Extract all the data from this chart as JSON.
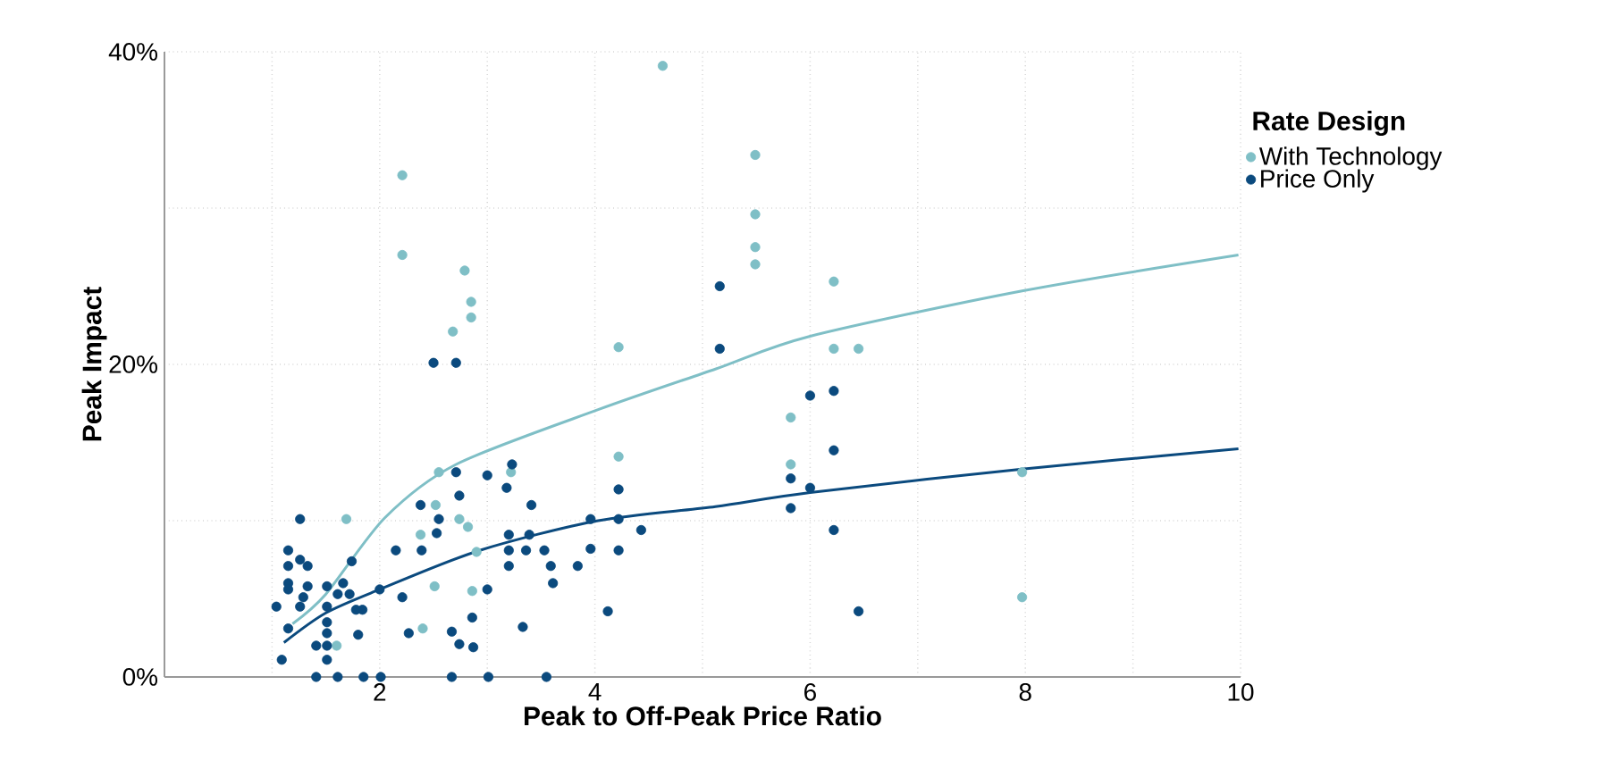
{
  "chart_data": {
    "type": "scatter",
    "xlabel": "Peak to Off-Peak Price Ratio",
    "ylabel": "Peak Impact",
    "legend_title": "Rate Design",
    "xlim": [
      0,
      10
    ],
    "ylim": [
      0,
      40
    ],
    "xticks": [
      {
        "value": 1,
        "label": null
      },
      2,
      {
        "value": 3,
        "label": null
      },
      4,
      {
        "value": 5,
        "label": null
      },
      6,
      {
        "value": 7,
        "label": null
      },
      8,
      {
        "value": 9,
        "label": null
      },
      10
    ],
    "yticks": [
      {
        "value": 0,
        "label": "0%"
      },
      {
        "value": 10,
        "label": null
      },
      {
        "value": 20,
        "label": "20%"
      },
      {
        "value": 30,
        "label": null
      },
      {
        "value": 40,
        "label": "40%"
      }
    ],
    "grid": true,
    "legend": "right",
    "series": [
      {
        "name": "With Technology",
        "marker": "circle",
        "color": "#7fbfc6",
        "x": [
          2.21,
          2.21,
          2.79,
          2.85,
          2.85,
          2.68,
          4.63,
          4.22,
          4.22,
          2.55,
          3.22,
          1.69,
          2.52,
          2.38,
          2.74,
          2.82,
          2.9,
          2.51,
          2.86,
          2.4,
          1.6,
          5.49,
          5.49,
          5.49,
          5.49,
          6.22,
          6.22,
          6.45,
          5.82,
          5.82,
          7.97,
          7.97
        ],
        "values": [
          32.1,
          27.0,
          26.0,
          24.0,
          23.0,
          22.1,
          39.1,
          21.1,
          14.1,
          13.1,
          13.1,
          10.1,
          11.0,
          9.1,
          10.1,
          9.6,
          8.0,
          5.8,
          5.5,
          3.1,
          2.0,
          33.4,
          29.6,
          27.5,
          26.4,
          25.3,
          21.0,
          21.0,
          16.6,
          13.6,
          13.1,
          5.1
        ]
      },
      {
        "name": "Price Only",
        "marker": "circle",
        "color": "#0b4a7e",
        "x": [
          5.16,
          5.16,
          6.0,
          6.22,
          6.22,
          5.82,
          6.0,
          5.82,
          6.22,
          6.45,
          2.5,
          2.71,
          2.71,
          3.0,
          3.23,
          3.18,
          2.74,
          2.38,
          2.55,
          2.53,
          3.41,
          2.15,
          2.39,
          3.2,
          3.39,
          3.2,
          3.36,
          3.2,
          3.53,
          3.59,
          3.61,
          3.84,
          3.96,
          3.96,
          4.22,
          4.22,
          4.22,
          4.43,
          4.12,
          3.0,
          2.86,
          3.33,
          2.67,
          2.74,
          2.87,
          2.21,
          2.27,
          2.0,
          2.67,
          3.01,
          3.55,
          2.01,
          1.85,
          1.61,
          1.41,
          1.09,
          1.26,
          1.15,
          1.15,
          1.26,
          1.33,
          1.15,
          1.15,
          1.26,
          1.04,
          1.33,
          1.29,
          1.15,
          1.51,
          1.51,
          1.51,
          1.51,
          1.51,
          1.51,
          1.41,
          1.66,
          1.74,
          1.72,
          1.78,
          1.84,
          1.8,
          1.61
        ],
        "values": [
          25.0,
          21.0,
          18.0,
          18.3,
          14.5,
          12.7,
          12.1,
          10.8,
          9.4,
          4.2,
          20.1,
          20.1,
          13.1,
          12.9,
          13.6,
          12.1,
          11.6,
          11.0,
          10.1,
          9.2,
          11.0,
          8.1,
          8.1,
          9.1,
          9.1,
          8.1,
          8.1,
          7.1,
          8.1,
          7.1,
          6.0,
          7.1,
          10.1,
          8.2,
          12.0,
          10.1,
          8.1,
          9.4,
          4.2,
          5.6,
          3.8,
          3.2,
          2.9,
          2.1,
          1.9,
          5.1,
          2.8,
          5.6,
          0,
          0,
          0,
          0,
          0,
          0,
          0,
          1.1,
          10.1,
          8.1,
          7.1,
          7.5,
          7.1,
          6.0,
          5.6,
          4.5,
          4.5,
          5.8,
          5.1,
          3.1,
          5.8,
          4.5,
          3.5,
          2.8,
          2.0,
          1.1,
          2.0,
          6.0,
          7.4,
          5.3,
          4.3,
          4.3,
          2.7,
          5.3
        ]
      },
      {
        "type": "line",
        "marker": "none",
        "color": "#7fbfc6",
        "x": [
          1.19,
          1.5,
          2.05,
          2.71,
          4.03,
          5.12,
          6.0,
          7.97,
          9.98
        ],
        "values": [
          3.4,
          5.3,
          10.2,
          13.6,
          17.1,
          19.7,
          21.8,
          24.7,
          27.0
        ]
      },
      {
        "type": "line",
        "marker": "none",
        "color": "#0b4a7e",
        "x": [
          1.11,
          1.5,
          2.0,
          2.93,
          4.03,
          5.12,
          6.0,
          7.97,
          9.98
        ],
        "values": [
          2.2,
          4.1,
          5.6,
          8.1,
          10.0,
          10.9,
          11.8,
          13.3,
          14.6
        ]
      }
    ]
  }
}
